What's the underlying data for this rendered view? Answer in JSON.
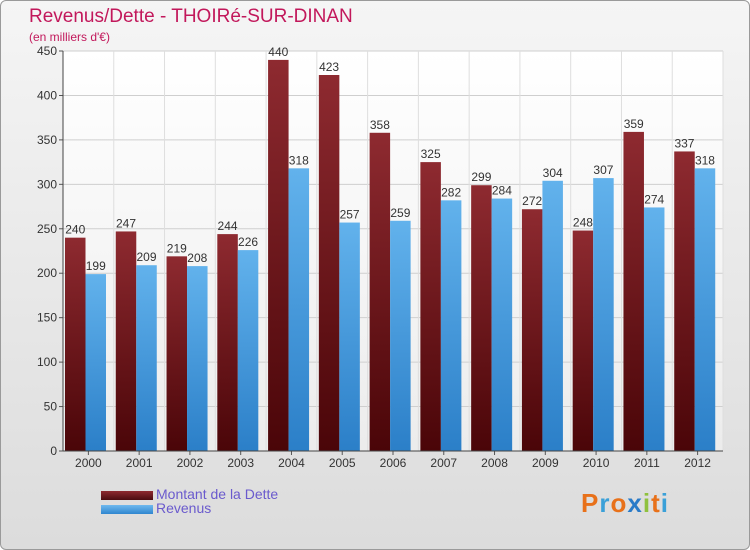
{
  "chart_data": {
    "type": "bar",
    "title": "Revenus/Dette - THOIRé-SUR-DINAN",
    "subtitle": "(en milliers d'€)",
    "xlabel": "",
    "ylabel": "",
    "ylim": [
      0,
      450
    ],
    "yticks": [
      "0",
      "50",
      "100",
      "150",
      "200",
      "250",
      "300",
      "350",
      "400",
      "450"
    ],
    "categories": [
      "2000",
      "2001",
      "2002",
      "2003",
      "2004",
      "2005",
      "2006",
      "2007",
      "2008",
      "2009",
      "2010",
      "2011",
      "2012"
    ],
    "series": [
      {
        "name": "Montant de la Dette",
        "color": "#7a1f25",
        "values": [
          240,
          247,
          219,
          244,
          440,
          423,
          358,
          325,
          299,
          272,
          248,
          359,
          337
        ]
      },
      {
        "name": "Revenus",
        "color": "#4aa0e0",
        "values": [
          199,
          209,
          208,
          226,
          318,
          257,
          259,
          282,
          284,
          304,
          307,
          274,
          318
        ]
      }
    ],
    "grid": true,
    "legend_position": "bottom-left"
  },
  "legend": {
    "debt_label": "Montant de la Dette",
    "revenue_label": "Revenus"
  },
  "logo": {
    "letters": [
      "P",
      "r",
      "o",
      "x",
      "i",
      "t",
      "i"
    ],
    "colors": [
      "#e8711a",
      "#3aa0d8",
      "#e8711a",
      "#2a7bc8",
      "#8fc13e",
      "#e8711a",
      "#3aa0d8"
    ]
  }
}
